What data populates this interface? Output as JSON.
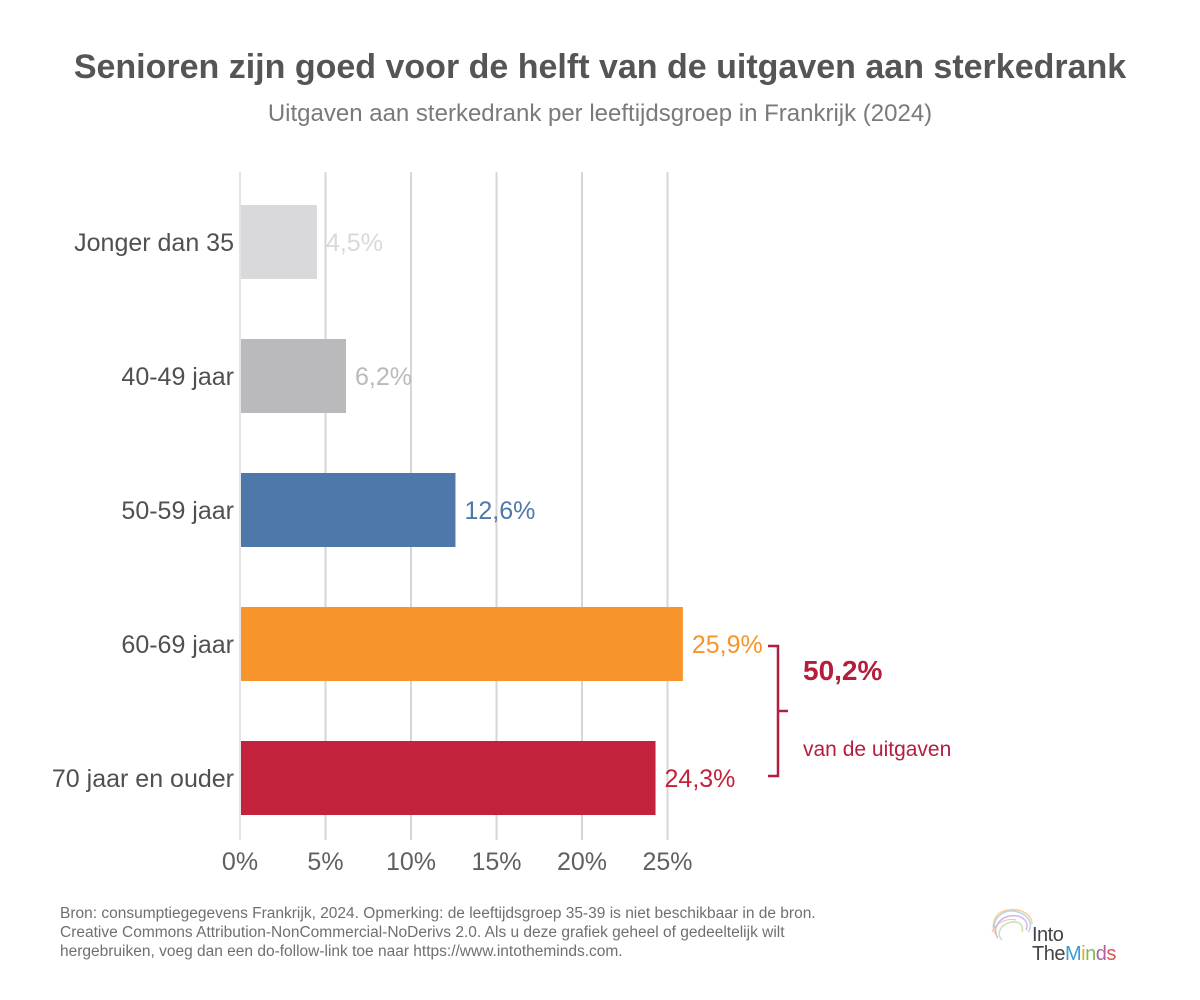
{
  "title": "Senioren zijn goed voor de helft van de uitgaven aan sterkedrank",
  "subtitle": "Uitgaven aan sterkedrank per leeftijdsgroep in Frankrijk (2024)",
  "chart_data": {
    "type": "bar",
    "orientation": "horizontal",
    "categories": [
      "Jonger dan 35",
      "40-49 jaar",
      "50-59 jaar",
      "60-69 jaar",
      "70 jaar en ouder"
    ],
    "values": [
      4.5,
      6.2,
      12.6,
      25.9,
      24.3
    ],
    "value_labels": [
      "4,5%",
      "6,2%",
      "12,6%",
      "25,9%",
      "24,3%"
    ],
    "colors": [
      "#d9d8da",
      "#bab9bc",
      "#4e78aa",
      "#f7942b",
      "#c4213c"
    ],
    "label_colors": [
      "#d9d8da",
      "#bab9bc",
      "#4e78aa",
      "#f7942b",
      "#c4213c"
    ],
    "xlim": [
      0,
      30
    ],
    "xticks": [
      0,
      5,
      10,
      15,
      20,
      25
    ],
    "xtick_labels": [
      "0%",
      "5%",
      "10%",
      "15%",
      "20%",
      "25%"
    ],
    "grid": true,
    "xlabel": "",
    "ylabel": "",
    "annotation": {
      "spans": [
        "60-69 jaar",
        "70 jaar en ouder"
      ],
      "value": "50,2%",
      "text": "van de uitgaven",
      "color": "#b41e3c"
    }
  },
  "footnote": [
    "Bron: consumptiegegevens Frankrijk, 2024. Opmerking: de leeftijdsgroep 35-39 is niet beschikbaar in de bron.",
    "Creative Commons Attribution-NonCommercial-NoDerivs 2.0. Als u deze grafiek geheel of gedeeltelijk wilt",
    "hergebruiken, voeg dan een do-follow-link toe naar https://www.intotheminds.com."
  ],
  "logo": {
    "line1": "Into",
    "line2_a": "The",
    "line2_b": "M",
    "line2_c": "i",
    "line2_d": "n",
    "line2_e": "d",
    "line2_f": "s"
  }
}
